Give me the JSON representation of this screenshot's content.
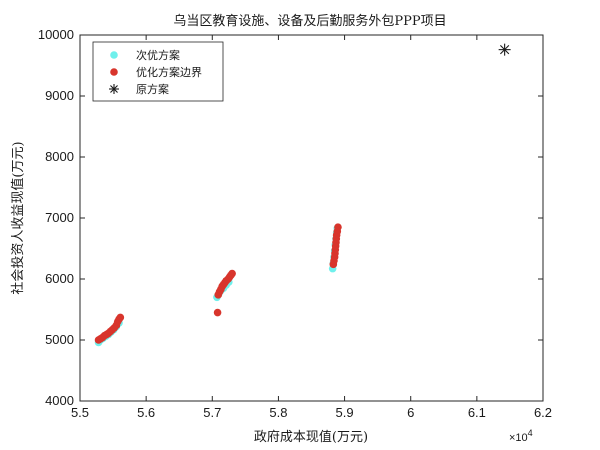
{
  "chart_data": {
    "type": "scatter",
    "title": "乌当区教育设施、设备及后勤服务外包PPP项目",
    "xlabel": "政府成本现值(万元)",
    "ylabel": "社会投资人收益现值(万元)",
    "x_exponent_label": "×10",
    "x_exponent_power": "4",
    "xlim": [
      55000,
      62000
    ],
    "ylim": [
      4000,
      10000
    ],
    "x_ticks": [
      55000,
      56000,
      57000,
      58000,
      59000,
      60000,
      61000,
      62000
    ],
    "x_tick_labels": [
      "5.5",
      "5.6",
      "5.7",
      "5.8",
      "5.9",
      "6",
      "6.1",
      "6.2"
    ],
    "y_ticks": [
      4000,
      5000,
      6000,
      7000,
      8000,
      9000,
      10000
    ],
    "y_tick_labels": [
      "4000",
      "5000",
      "6000",
      "7000",
      "8000",
      "9000",
      "10000"
    ],
    "legend_position": "top-left",
    "series": [
      {
        "name": "次优方案",
        "marker": "circle",
        "color": "#6ff0ec",
        "points": [
          [
            55280,
            4960
          ],
          [
            55310,
            5000
          ],
          [
            55350,
            5030
          ],
          [
            55390,
            5060
          ],
          [
            55430,
            5090
          ],
          [
            55470,
            5130
          ],
          [
            55510,
            5170
          ],
          [
            55550,
            5220
          ],
          [
            55590,
            5280
          ],
          [
            57070,
            5700
          ],
          [
            57100,
            5760
          ],
          [
            57130,
            5810
          ],
          [
            57170,
            5850
          ],
          [
            57210,
            5900
          ],
          [
            57250,
            5950
          ],
          [
            58820,
            6170
          ],
          [
            58830,
            6260
          ],
          [
            58840,
            6360
          ],
          [
            58850,
            6460
          ],
          [
            58860,
            6560
          ],
          [
            58870,
            6660
          ],
          [
            58880,
            6760
          ],
          [
            58890,
            6830
          ]
        ]
      },
      {
        "name": "优化方案边界",
        "marker": "circle",
        "color": "#d8352c",
        "points": [
          [
            55280,
            5000
          ],
          [
            55310,
            5020
          ],
          [
            55340,
            5040
          ],
          [
            55370,
            5070
          ],
          [
            55400,
            5090
          ],
          [
            55430,
            5110
          ],
          [
            55460,
            5140
          ],
          [
            55490,
            5170
          ],
          [
            55520,
            5200
          ],
          [
            55550,
            5240
          ],
          [
            55570,
            5300
          ],
          [
            55590,
            5340
          ],
          [
            55610,
            5370
          ],
          [
            57080,
            5450
          ],
          [
            57090,
            5740
          ],
          [
            57110,
            5790
          ],
          [
            57130,
            5830
          ],
          [
            57150,
            5880
          ],
          [
            57170,
            5910
          ],
          [
            57190,
            5940
          ],
          [
            57210,
            5970
          ],
          [
            57240,
            6000
          ],
          [
            57260,
            6030
          ],
          [
            57280,
            6060
          ],
          [
            57300,
            6090
          ],
          [
            58830,
            6240
          ],
          [
            58840,
            6300
          ],
          [
            58850,
            6360
          ],
          [
            58855,
            6420
          ],
          [
            58860,
            6480
          ],
          [
            58865,
            6540
          ],
          [
            58870,
            6600
          ],
          [
            58875,
            6660
          ],
          [
            58880,
            6720
          ],
          [
            58890,
            6780
          ],
          [
            58900,
            6850
          ]
        ]
      },
      {
        "name": "原方案",
        "marker": "asterisk",
        "color": "#1a1a1a",
        "points": [
          [
            61420,
            9760
          ]
        ]
      }
    ]
  }
}
